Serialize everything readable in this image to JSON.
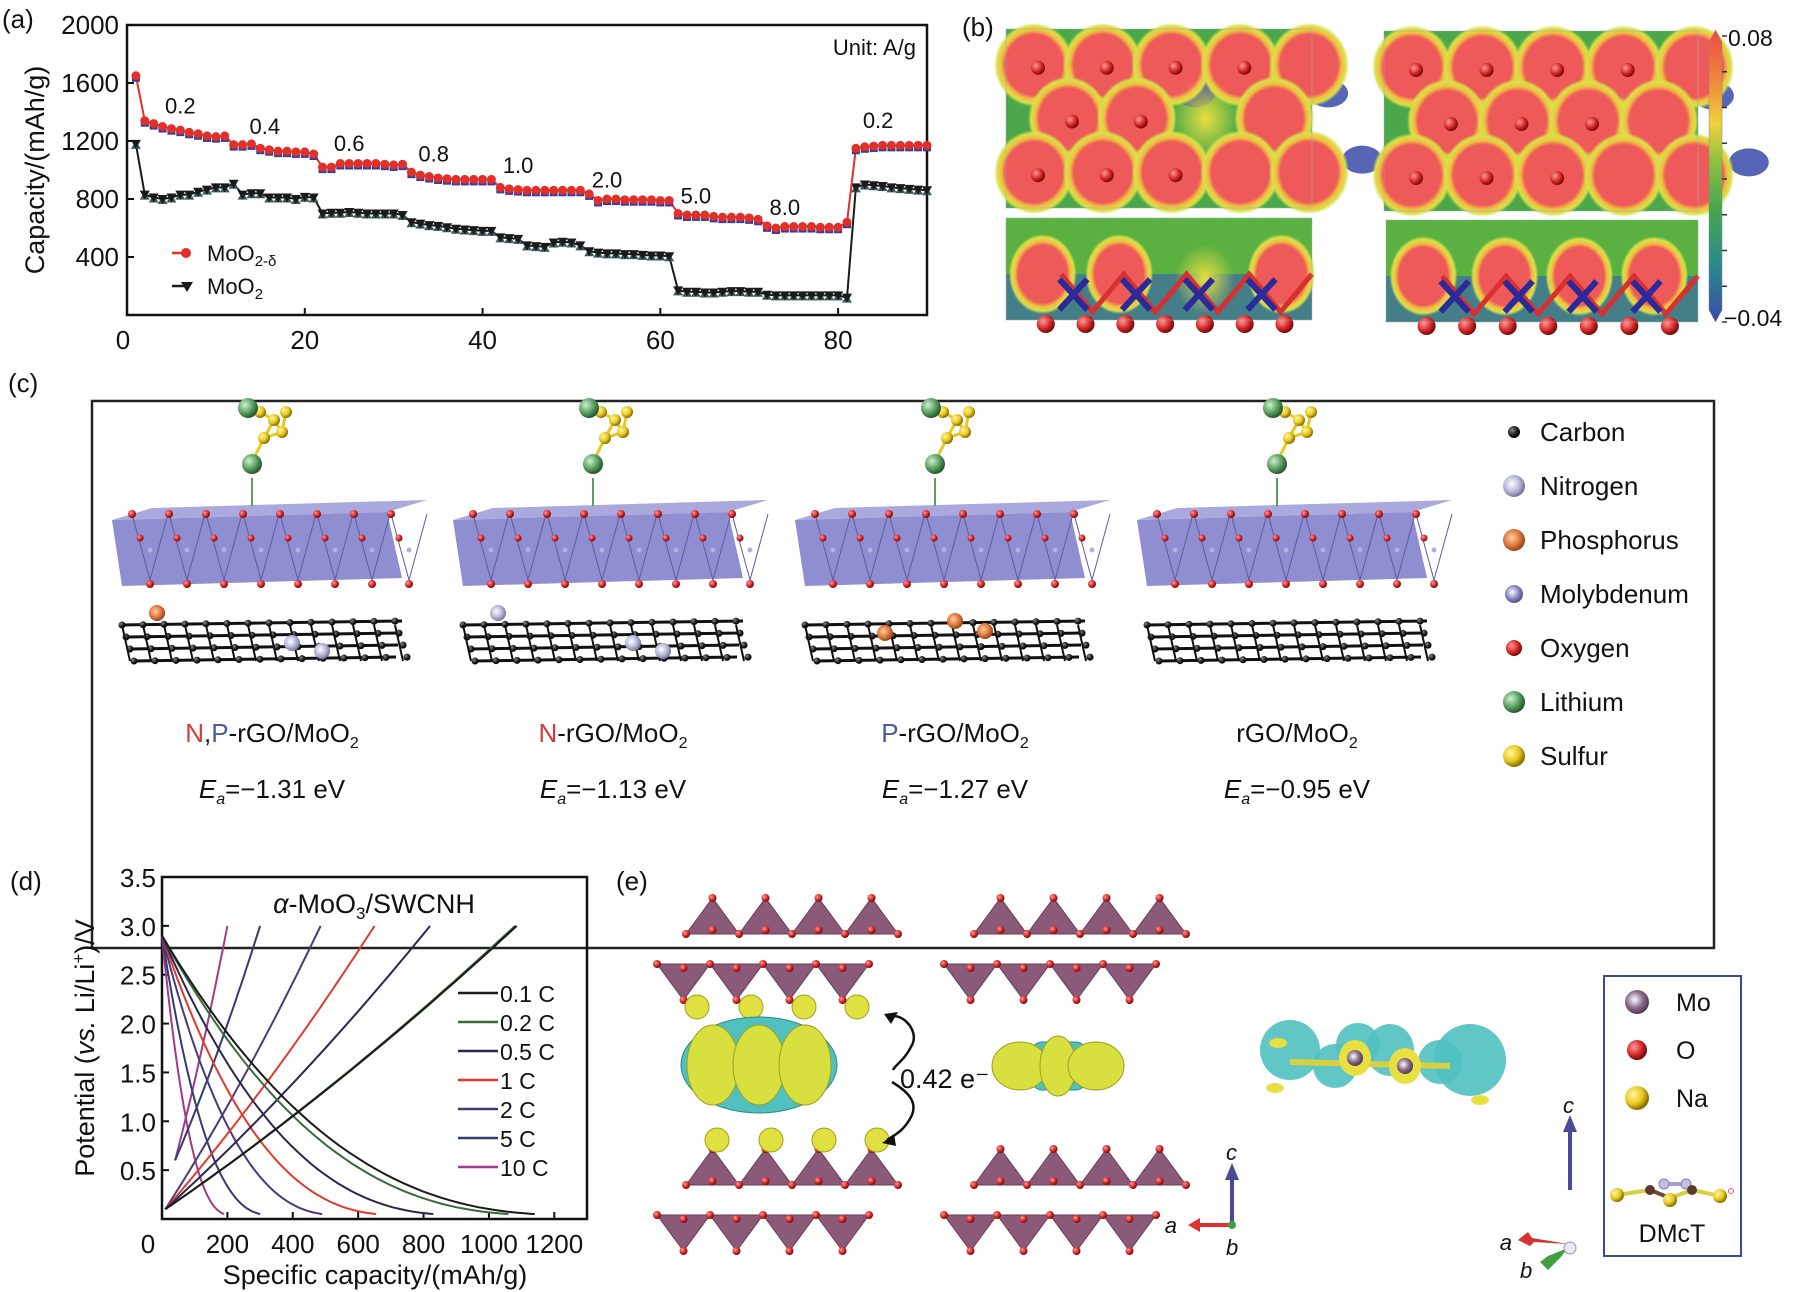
{
  "panels": {
    "a": {
      "label": "(a)"
    },
    "b": {
      "label": "(b)"
    },
    "c": {
      "label": "(c)"
    },
    "d": {
      "label": "(d)"
    },
    "e": {
      "label": "(e)"
    }
  },
  "chart_data": [
    {
      "id": "a",
      "type": "scatter",
      "title": "",
      "xlabel": "",
      "ylabel": "Capacity/(mAh/g)",
      "xlim": [
        0,
        90
      ],
      "ylim": [
        0,
        2000
      ],
      "xticks": [
        0,
        20,
        40,
        60,
        80
      ],
      "yticks": [
        400,
        800,
        1200,
        1600,
        2000
      ],
      "grid": false,
      "unit_note": "Unit: A/g",
      "legend_position": "bottom-left",
      "rate_annotations": [
        {
          "text": "0.2",
          "x": 6,
          "y": 1390
        },
        {
          "text": "0.4",
          "x": 15.5,
          "y": 1250
        },
        {
          "text": "0.6",
          "x": 25,
          "y": 1130
        },
        {
          "text": "0.8",
          "x": 34.5,
          "y": 1060
        },
        {
          "text": "1.0",
          "x": 44,
          "y": 980
        },
        {
          "text": "2.0",
          "x": 54,
          "y": 880
        },
        {
          "text": "5.0",
          "x": 64,
          "y": 770
        },
        {
          "text": "8.0",
          "x": 74,
          "y": 690
        },
        {
          "text": "0.2",
          "x": 84.5,
          "y": 1290
        }
      ],
      "series": [
        {
          "name": "MoO2-δ",
          "name_main": "MoO",
          "name_sub": "2-δ",
          "color": "#e0302a",
          "marker": "circle",
          "x": [
            1,
            2,
            3,
            4,
            5,
            6,
            7,
            8,
            9,
            10,
            11,
            12,
            13,
            14,
            15,
            16,
            17,
            18,
            19,
            20,
            21,
            22,
            23,
            24,
            25,
            26,
            27,
            28,
            29,
            30,
            31,
            32,
            33,
            34,
            35,
            36,
            37,
            38,
            39,
            40,
            41,
            42,
            43,
            44,
            45,
            46,
            47,
            48,
            49,
            50,
            51,
            52,
            53,
            54,
            55,
            56,
            57,
            58,
            59,
            60,
            61,
            62,
            63,
            64,
            65,
            66,
            67,
            68,
            69,
            70,
            71,
            72,
            73,
            74,
            75,
            76,
            77,
            78,
            79,
            80,
            81,
            82,
            83,
            84,
            85,
            86,
            87,
            88,
            89,
            90
          ],
          "y": [
            1650,
            1340,
            1320,
            1300,
            1285,
            1275,
            1260,
            1250,
            1235,
            1230,
            1235,
            1175,
            1175,
            1180,
            1150,
            1140,
            1130,
            1130,
            1125,
            1125,
            1110,
            1020,
            1020,
            1045,
            1045,
            1045,
            1045,
            1045,
            1040,
            1035,
            1040,
            985,
            965,
            955,
            945,
            940,
            935,
            935,
            935,
            935,
            935,
            880,
            870,
            865,
            860,
            860,
            860,
            860,
            860,
            860,
            860,
            835,
            790,
            800,
            800,
            795,
            795,
            795,
            795,
            790,
            790,
            700,
            690,
            690,
            690,
            680,
            675,
            675,
            675,
            670,
            660,
            615,
            600,
            610,
            610,
            610,
            610,
            605,
            605,
            605,
            640,
            1150,
            1160,
            1165,
            1170,
            1170,
            1170,
            1170,
            1170,
            1170
          ]
        },
        {
          "name": "MoO2",
          "name_main": "MoO",
          "name_sub": "2",
          "color": "#1a1a1a",
          "marker": "triangle-down",
          "x": [
            1,
            2,
            3,
            4,
            5,
            6,
            7,
            8,
            9,
            10,
            11,
            12,
            13,
            14,
            15,
            16,
            17,
            18,
            19,
            20,
            21,
            22,
            23,
            24,
            25,
            26,
            27,
            28,
            29,
            30,
            31,
            32,
            33,
            34,
            35,
            36,
            37,
            38,
            39,
            40,
            41,
            42,
            43,
            44,
            45,
            46,
            47,
            48,
            49,
            50,
            51,
            52,
            53,
            54,
            55,
            56,
            57,
            58,
            59,
            60,
            61,
            62,
            63,
            64,
            65,
            66,
            67,
            68,
            69,
            70,
            71,
            72,
            73,
            74,
            75,
            76,
            77,
            78,
            79,
            80,
            81,
            82,
            83,
            84,
            85,
            86,
            87,
            88,
            89,
            90
          ],
          "y": [
            1180,
            830,
            810,
            800,
            810,
            830,
            830,
            850,
            865,
            880,
            880,
            905,
            830,
            840,
            840,
            810,
            810,
            810,
            800,
            815,
            810,
            700,
            705,
            705,
            710,
            705,
            700,
            700,
            700,
            700,
            690,
            640,
            630,
            620,
            615,
            605,
            595,
            590,
            585,
            580,
            580,
            535,
            530,
            525,
            480,
            475,
            470,
            500,
            505,
            500,
            480,
            440,
            430,
            425,
            425,
            420,
            420,
            415,
            410,
            410,
            405,
            170,
            160,
            160,
            155,
            155,
            160,
            165,
            165,
            160,
            160,
            140,
            135,
            135,
            135,
            135,
            135,
            135,
            135,
            135,
            120,
            880,
            900,
            895,
            890,
            880,
            875,
            870,
            865,
            860
          ]
        }
      ]
    },
    {
      "id": "b",
      "type": "heatmap",
      "title": "",
      "colorbar": {
        "max_label": "0.08",
        "min_label": "−0.04",
        "max": 0.08,
        "min": -0.04,
        "colors": [
          "#3a4aa8",
          "#2a9a6a",
          "#5ab040",
          "#a8c83a",
          "#f0d23a",
          "#f08a3a",
          "#ee4a44"
        ]
      },
      "maps": [
        "top-left charge density slice",
        "bottom-left side view",
        "top-right charge density slice",
        "bottom-right side view"
      ]
    },
    {
      "id": "d",
      "type": "line",
      "title": "α-MoO3/SWCNH",
      "title_parts": {
        "greek": "α",
        "main": "-MoO",
        "sub": "3",
        "tail": "/SWCNH"
      },
      "xlabel": "Specific capacity/(mAh/g)",
      "ylabel": "Potential (vs. Li/Li+)/V",
      "ylabel_parts": {
        "pre": "Potential (",
        "it": "vs.",
        "mid": " Li/Li",
        "sup": "+",
        "post": ")/V"
      },
      "xlim": [
        0,
        1300
      ],
      "ylim": [
        0,
        3.5
      ],
      "xticks": [
        0,
        200,
        400,
        600,
        800,
        1000,
        1200
      ],
      "yticks": [
        0.5,
        1.0,
        1.5,
        2.0,
        2.5,
        3.0,
        3.5
      ],
      "ytick_labels": [
        "0.5",
        "1.0",
        "1.5",
        "2.0",
        "2.5",
        "3.0",
        "3.5"
      ],
      "grid": false,
      "legend_position": "right",
      "series": [
        {
          "name": "0.1 C",
          "color": "#1a1a1a",
          "discharge_end": 1140,
          "charge_end": 1085
        },
        {
          "name": "0.2 C",
          "color": "#3a6a3a",
          "discharge_end": 1060,
          "charge_end": 1080
        },
        {
          "name": "0.5 C",
          "color": "#2a2850",
          "discharge_end": 830,
          "charge_end": 820
        },
        {
          "name": "1 C",
          "color": "#e03a2a",
          "discharge_end": 655,
          "charge_end": 650
        },
        {
          "name": "2 C",
          "color": "#4a3a7a",
          "discharge_end": 490,
          "charge_end": 485
        },
        {
          "name": "5 C",
          "color": "#353a70",
          "discharge_end": 300,
          "charge_end": 300
        },
        {
          "name": "10 C",
          "color": "#a03a8a",
          "discharge_end": 190,
          "charge_end": 200
        }
      ]
    }
  ],
  "panel_c": {
    "structures": [
      {
        "name_parts": [
          {
            "text": "N",
            "color": "#d43a3a"
          },
          {
            "text": ",",
            "color": "#111"
          },
          {
            "text": "P",
            "color": "#4a5aa0"
          },
          {
            "text": "-rGO/MoO",
            "color": "#111"
          }
        ],
        "sub": "2",
        "energy_label": "E",
        "energy_sub": "a",
        "energy_value": "=−1.31 eV",
        "dopants": [
          "P",
          "N",
          "N"
        ]
      },
      {
        "name_parts": [
          {
            "text": "N",
            "color": "#d43a3a"
          },
          {
            "text": "-rGO/MoO",
            "color": "#111"
          }
        ],
        "sub": "2",
        "energy_label": "E",
        "energy_sub": "a",
        "energy_value": "=−1.13 eV",
        "dopants": [
          "N",
          "N",
          "N"
        ]
      },
      {
        "name_parts": [
          {
            "text": "P",
            "color": "#4a5aa0"
          },
          {
            "text": "-rGO/MoO",
            "color": "#111"
          }
        ],
        "sub": "2",
        "energy_label": "E",
        "energy_sub": "a",
        "energy_value": "=−1.27 eV",
        "dopants": [
          "P",
          "P",
          "P"
        ]
      },
      {
        "name_parts": [
          {
            "text": "rGO/MoO",
            "color": "#111"
          }
        ],
        "sub": "2",
        "energy_label": "E",
        "energy_sub": "a",
        "energy_value": "=−0.95 eV",
        "dopants": []
      }
    ],
    "legend": [
      {
        "label": "Carbon",
        "color": "#222222"
      },
      {
        "label": "Nitrogen",
        "color": "#b8b8d8"
      },
      {
        "label": "Phosphorus",
        "color": "#e07a40"
      },
      {
        "label": "Molybdenum",
        "color": "#8a8ac8"
      },
      {
        "label": "Oxygen",
        "color": "#d82a2a"
      },
      {
        "label": "Lithium",
        "color": "#5aa060"
      },
      {
        "label": "Sulfur",
        "color": "#e8c820"
      }
    ]
  },
  "panel_e": {
    "transfer_label": "0.42 e⁻",
    "axes1": {
      "a": "a",
      "b": "b",
      "c": "c"
    },
    "axes2": {
      "a": "a",
      "b": "b",
      "c": "c"
    },
    "legend": [
      {
        "label": "Mo",
        "color": "#8a6a8a"
      },
      {
        "label": "O",
        "color": "#d82a2a"
      },
      {
        "label": "Na",
        "color": "#e8d040"
      }
    ],
    "molecule_label": "DMcT"
  }
}
